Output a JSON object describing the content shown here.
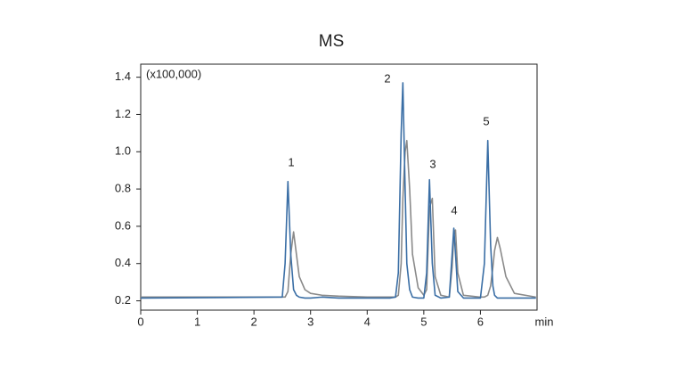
{
  "chart_data": {
    "type": "line",
    "title": "MS",
    "annotation": "(x100,000)",
    "xlabel": "min",
    "peak_labels": [
      "1",
      "2",
      "3",
      "4",
      "5"
    ],
    "x": [
      0,
      2.5,
      2.55,
      2.6,
      2.65,
      2.7,
      2.75,
      2.8,
      2.9,
      3.0,
      3.2,
      3.5,
      4.0,
      4.4,
      4.5,
      4.55,
      4.6,
      4.63,
      4.67,
      4.7,
      4.75,
      4.8,
      4.9,
      5.0,
      5.05,
      5.1,
      5.15,
      5.2,
      5.3,
      5.45,
      5.5,
      5.53,
      5.56,
      5.6,
      5.7,
      6.0,
      6.07,
      6.13,
      6.18,
      6.22,
      6.25,
      6.3,
      6.35,
      6.45,
      6.6,
      6.98
    ],
    "series": [
      {
        "color": "#8a8a8a",
        "values": [
          0.22,
          0.22,
          0.22,
          0.25,
          0.45,
          0.57,
          0.45,
          0.33,
          0.26,
          0.24,
          0.23,
          0.225,
          0.22,
          0.22,
          0.22,
          0.23,
          0.4,
          0.75,
          1.0,
          1.06,
          0.8,
          0.45,
          0.27,
          0.23,
          0.26,
          0.7,
          0.75,
          0.33,
          0.23,
          0.22,
          0.38,
          0.55,
          0.58,
          0.35,
          0.23,
          0.22,
          0.22,
          0.23,
          0.28,
          0.38,
          0.47,
          0.54,
          0.48,
          0.33,
          0.24,
          0.22
        ]
      },
      {
        "color": "#3a6ea5",
        "values": [
          0.215,
          0.22,
          0.4,
          0.84,
          0.45,
          0.26,
          0.23,
          0.22,
          0.215,
          0.215,
          0.22,
          0.215,
          0.215,
          0.215,
          0.22,
          0.35,
          1.1,
          1.37,
          0.8,
          0.4,
          0.26,
          0.22,
          0.215,
          0.215,
          0.35,
          0.85,
          0.4,
          0.23,
          0.215,
          0.22,
          0.45,
          0.59,
          0.45,
          0.25,
          0.215,
          0.215,
          0.4,
          1.06,
          0.5,
          0.28,
          0.23,
          0.215,
          0.215,
          0.215,
          0.215,
          0.215
        ]
      }
    ],
    "xlim": [
      0,
      7
    ],
    "xticks": [
      0,
      1,
      2,
      3,
      4,
      5,
      6
    ],
    "ylim": [
      0.15,
      1.47
    ],
    "yticks": [
      0.2,
      0.4,
      0.6,
      0.8,
      {
        "value": 1,
        "label": "1.0"
      },
      1.2,
      1.4
    ],
    "grid": false
  }
}
